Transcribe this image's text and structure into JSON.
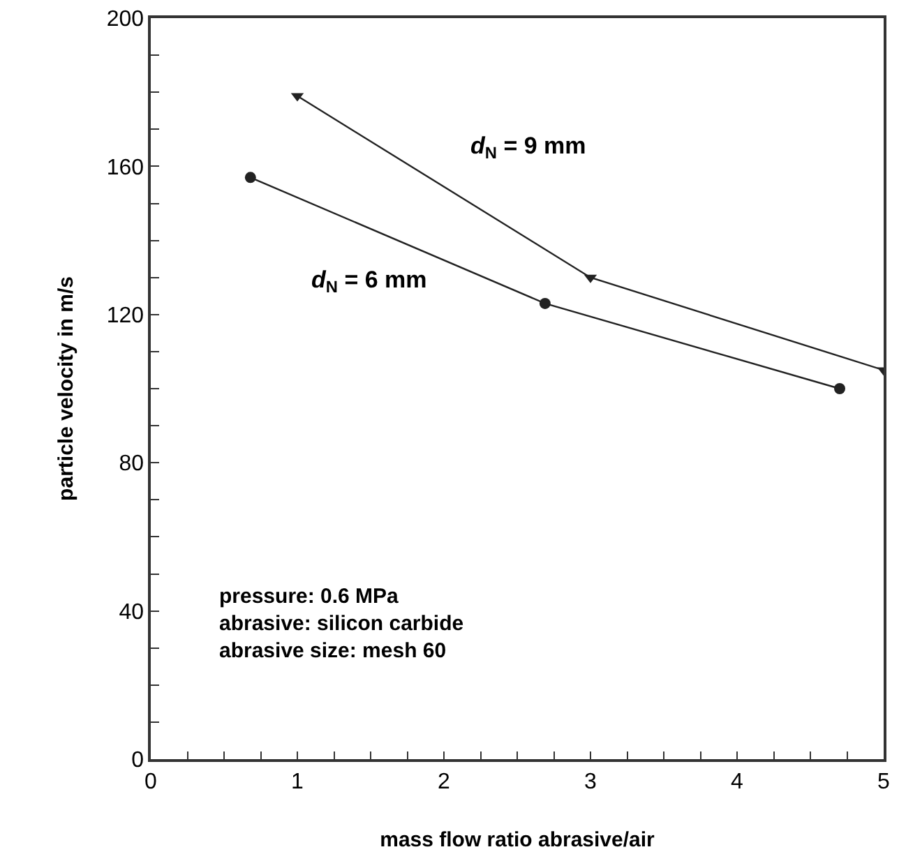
{
  "chart_data": {
    "type": "line",
    "xlabel": "mass flow ratio abrasive/air",
    "ylabel": "particle velocity in m/s",
    "xlim": [
      0,
      5
    ],
    "ylim": [
      0,
      200
    ],
    "xticks": [
      0,
      {
        "value": 0.25,
        "label": null
      },
      {
        "value": 0.5,
        "label": null
      },
      {
        "value": 0.75,
        "label": null
      },
      1,
      {
        "value": 1.25,
        "label": null
      },
      {
        "value": 1.5,
        "label": null
      },
      {
        "value": 1.75,
        "label": null
      },
      2,
      {
        "value": 2.25,
        "label": null
      },
      {
        "value": 2.5,
        "label": null
      },
      {
        "value": 2.75,
        "label": null
      },
      3,
      {
        "value": 3.25,
        "label": null
      },
      {
        "value": 3.5,
        "label": null
      },
      {
        "value": 3.75,
        "label": null
      },
      4,
      {
        "value": 4.25,
        "label": null
      },
      {
        "value": 4.5,
        "label": null
      },
      {
        "value": 4.75,
        "label": null
      },
      5
    ],
    "yticks": [
      0,
      {
        "value": 10,
        "label": null
      },
      {
        "value": 20,
        "label": null
      },
      {
        "value": 30,
        "label": null
      },
      40,
      {
        "value": 50,
        "label": null
      },
      {
        "value": 60,
        "label": null
      },
      {
        "value": 70,
        "label": null
      },
      80,
      {
        "value": 90,
        "label": null
      },
      {
        "value": 100,
        "label": null
      },
      {
        "value": 110,
        "label": null
      },
      120,
      {
        "value": 130,
        "label": null
      },
      {
        "value": 140,
        "label": null
      },
      {
        "value": 150,
        "label": null
      },
      160,
      {
        "value": 170,
        "label": null
      },
      {
        "value": 180,
        "label": null
      },
      {
        "value": 190,
        "label": null
      },
      200
    ],
    "legend": false,
    "line_style": "solid",
    "series": [
      {
        "name": "d$_{N}$ = 9 mm",
        "color": "#222222",
        "marker": "triangle",
        "x": [
          1.0,
          3.0,
          5.0
        ],
        "values": [
          179,
          130,
          105
        ]
      },
      {
        "name": "d$_{N}$ = 6 mm",
        "color": "#222222",
        "marker": "circle",
        "x": [
          0.68,
          2.69,
          4.7
        ],
        "values": [
          157,
          123,
          100
        ]
      }
    ],
    "annotations": [
      "pressure: 0.6 MPa\nabrasive: silicon carbide\nabrasive size: mesh 60"
    ]
  }
}
